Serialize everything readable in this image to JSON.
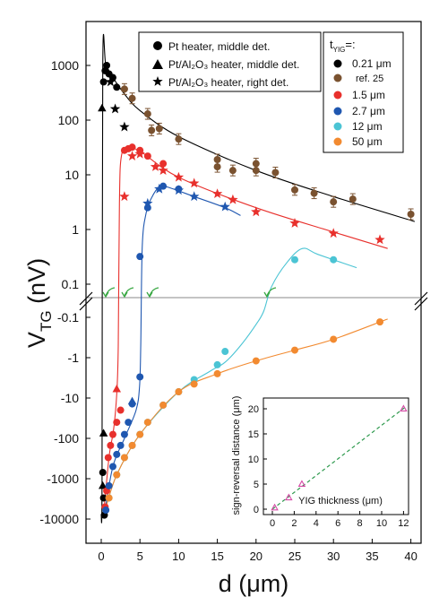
{
  "chart_data": [
    {
      "type": "scatter",
      "xlabel": "d (μm)",
      "ylabel": "V",
      "ylabel_sub": "TG",
      "ylabel_unit": " (nV)",
      "xlim": [
        -1.5,
        40.5
      ],
      "x_ticks": [
        "0",
        "5",
        "10",
        "15",
        "20",
        "25",
        "30",
        "35",
        "40"
      ],
      "y_scale": "symmetric-log, broken axis between +0.05 nV and -0.05 nV",
      "y_ticks_positive": [
        "1000",
        "100",
        "10",
        "1",
        "0.1"
      ],
      "y_ticks_negative": [
        "-0.1",
        "-1",
        "-10",
        "-100",
        "-1000",
        "-10000"
      ],
      "legend_markers": [
        {
          "marker": "circle",
          "label": "Pt heater, middle det."
        },
        {
          "marker": "triangle",
          "label": "Pt/Al₂O₃ heater, middle det."
        },
        {
          "marker": "star",
          "label": "Pt/Al₂O₃ heater, right det."
        }
      ],
      "legend_thickness_title": "t",
      "legend_thickness_title_sub": "YIG",
      "legend_thickness_title_suffix": "=:",
      "series": [
        {
          "name": "0.21 μm",
          "color": "#000000",
          "points": [
            {
              "x": 0.3,
              "y": 500,
              "m": "circle"
            },
            {
              "x": 0.5,
              "y": 800,
              "m": "circle"
            },
            {
              "x": 0.7,
              "y": 1000,
              "m": "circle"
            },
            {
              "x": 1.0,
              "y": 700,
              "m": "circle"
            },
            {
              "x": 1.5,
              "y": 600,
              "m": "circle"
            },
            {
              "x": 2.0,
              "y": 400,
              "m": "circle"
            },
            {
              "x": 0.2,
              "y": -700,
              "m": "circle"
            },
            {
              "x": 0.3,
              "y": -3000,
              "m": "circle"
            },
            {
              "x": 0.4,
              "y": -8000,
              "m": "circle"
            },
            {
              "x": 0.1,
              "y": 165,
              "m": "triangle"
            },
            {
              "x": 0.3,
              "y": -75,
              "m": "triangle"
            },
            {
              "x": 0.2,
              "y": -1500,
              "m": "triangle"
            },
            {
              "x": 1.2,
              "y": 500,
              "m": "star"
            },
            {
              "x": 1.8,
              "y": 160,
              "m": "star"
            },
            {
              "x": 3.0,
              "y": 75,
              "m": "star"
            }
          ],
          "curve": [
            [
              0.0,
              -8000
            ],
            [
              0.1,
              -1000
            ],
            [
              0.2,
              1000
            ],
            [
              0.6,
              1000
            ],
            [
              1.5,
              600
            ],
            [
              3.0,
              300
            ],
            [
              5.0,
              150
            ],
            [
              10.0,
              50
            ],
            [
              20.0,
              12
            ],
            [
              30.0,
              4
            ],
            [
              40.5,
              1.4
            ]
          ]
        },
        {
          "name": "ref. 25",
          "color": "#7a5230",
          "points": [
            {
              "x": 3.0,
              "y": 370
            },
            {
              "x": 4.0,
              "y": 250
            },
            {
              "x": 6.0,
              "y": 130
            },
            {
              "x": 6.5,
              "y": 65
            },
            {
              "x": 7.5,
              "y": 70
            },
            {
              "x": 10.0,
              "y": 45
            },
            {
              "x": 15.0,
              "y": 19
            },
            {
              "x": 15.0,
              "y": 14
            },
            {
              "x": 17.0,
              "y": 12
            },
            {
              "x": 20.0,
              "y": 16
            },
            {
              "x": 20.0,
              "y": 12
            },
            {
              "x": 22.5,
              "y": 11
            },
            {
              "x": 25.0,
              "y": 5.3
            },
            {
              "x": 27.5,
              "y": 4.6
            },
            {
              "x": 30.0,
              "y": 3.2
            },
            {
              "x": 32.5,
              "y": 3.6
            },
            {
              "x": 40.0,
              "y": 1.9
            }
          ]
        },
        {
          "name": "1.5 μm",
          "color": "#e8302c",
          "points": [
            {
              "x": 0.5,
              "y": -5000,
              "m": "circle"
            },
            {
              "x": 0.7,
              "y": -2000,
              "m": "circle"
            },
            {
              "x": 0.9,
              "y": -300,
              "m": "circle"
            },
            {
              "x": 1.2,
              "y": -150,
              "m": "circle"
            },
            {
              "x": 1.5,
              "y": -80,
              "m": "circle"
            },
            {
              "x": 2.0,
              "y": -40,
              "m": "circle"
            },
            {
              "x": 2.5,
              "y": -20,
              "m": "circle"
            },
            {
              "x": 3.0,
              "y": 28,
              "m": "circle"
            },
            {
              "x": 3.5,
              "y": 30,
              "m": "circle"
            },
            {
              "x": 4.0,
              "y": 32,
              "m": "circle"
            },
            {
              "x": 5.0,
              "y": 28,
              "m": "circle"
            },
            {
              "x": 6.0,
              "y": 22,
              "m": "circle"
            },
            {
              "x": 8.0,
              "y": 16,
              "m": "circle"
            },
            {
              "x": 2.0,
              "y": -6,
              "m": "triangle"
            },
            {
              "x": 3.0,
              "y": 4,
              "m": "star"
            },
            {
              "x": 4.0,
              "y": 22,
              "m": "star"
            },
            {
              "x": 5.0,
              "y": 24,
              "m": "star"
            },
            {
              "x": 7.0,
              "y": 14,
              "m": "star"
            },
            {
              "x": 8.0,
              "y": 12,
              "m": "star"
            },
            {
              "x": 10.0,
              "y": 9,
              "m": "star"
            },
            {
              "x": 12.0,
              "y": 7,
              "m": "star"
            },
            {
              "x": 15.0,
              "y": 4.5,
              "m": "star"
            },
            {
              "x": 17.0,
              "y": 3.5,
              "m": "star"
            },
            {
              "x": 20.0,
              "y": 2.1,
              "m": "star"
            },
            {
              "x": 25.0,
              "y": 1.3,
              "m": "star"
            },
            {
              "x": 30.0,
              "y": 0.85,
              "m": "star"
            },
            {
              "x": 36.0,
              "y": 0.65,
              "m": "star"
            }
          ],
          "curve": [
            [
              0.3,
              -8000
            ],
            [
              1.0,
              -300
            ],
            [
              1.6,
              -60
            ],
            [
              2.0,
              -8
            ],
            [
              2.2,
              -0.5
            ],
            [
              2.35,
              3
            ],
            [
              2.6,
              22
            ],
            [
              3.5,
              30
            ],
            [
              5.0,
              27
            ],
            [
              10.0,
              9
            ],
            [
              20.0,
              2.5
            ],
            [
              30.0,
              0.9
            ],
            [
              37.0,
              0.45
            ]
          ]
        },
        {
          "name": "2.7 μm",
          "color": "#1f57b0",
          "points": [
            {
              "x": 0.6,
              "y": -6000,
              "m": "circle"
            },
            {
              "x": 1.0,
              "y": -1500,
              "m": "circle"
            },
            {
              "x": 1.5,
              "y": -500,
              "m": "circle"
            },
            {
              "x": 2.0,
              "y": -250,
              "m": "circle"
            },
            {
              "x": 2.5,
              "y": -150,
              "m": "circle"
            },
            {
              "x": 3.0,
              "y": -80,
              "m": "circle"
            },
            {
              "x": 3.5,
              "y": -40,
              "m": "circle"
            },
            {
              "x": 4.0,
              "y": -14,
              "m": "circle"
            },
            {
              "x": 5.0,
              "y": -3,
              "m": "circle"
            },
            {
              "x": 5.0,
              "y": 0.32,
              "m": "circle"
            },
            {
              "x": 6.0,
              "y": 2.5,
              "m": "circle"
            },
            {
              "x": 8.0,
              "y": 6.2,
              "m": "circle"
            },
            {
              "x": 10.0,
              "y": 5.5,
              "m": "circle"
            },
            {
              "x": 4.0,
              "y": -12,
              "m": "triangle"
            },
            {
              "x": 6.0,
              "y": 3.0,
              "m": "star"
            },
            {
              "x": 7.5,
              "y": 5.5,
              "m": "star"
            },
            {
              "x": 10.0,
              "y": 5.2,
              "m": "star"
            },
            {
              "x": 12.0,
              "y": 4.0,
              "m": "star"
            },
            {
              "x": 16.0,
              "y": 2.6,
              "m": "star"
            }
          ],
          "curve": [
            [
              0.4,
              -8000
            ],
            [
              1.5,
              -500
            ],
            [
              3.0,
              -100
            ],
            [
              4.5,
              -20
            ],
            [
              4.95,
              -5
            ],
            [
              5.1,
              -0.5
            ],
            [
              5.3,
              0.5
            ],
            [
              5.8,
              2.0
            ],
            [
              6.5,
              3.8
            ],
            [
              7.5,
              6.0
            ],
            [
              8.5,
              6.0
            ],
            [
              12.0,
              4.0
            ],
            [
              16.0,
              2.5
            ],
            [
              18.0,
              1.8
            ]
          ]
        },
        {
          "name": "12 μm",
          "color": "#4bc4d4",
          "points": [
            {
              "x": 1.0,
              "y": -3000
            },
            {
              "x": 2.0,
              "y": -800
            },
            {
              "x": 3.0,
              "y": -300
            },
            {
              "x": 4.0,
              "y": -150
            },
            {
              "x": 5.0,
              "y": -80
            },
            {
              "x": 6.0,
              "y": -40
            },
            {
              "x": 8.0,
              "y": -15
            },
            {
              "x": 10.0,
              "y": -7
            },
            {
              "x": 12.0,
              "y": -3.5
            },
            {
              "x": 15.0,
              "y": -1.5
            },
            {
              "x": 16.0,
              "y": -0.7
            },
            {
              "x": 25.0,
              "y": 0.28
            },
            {
              "x": 30.0,
              "y": 0.28
            }
          ],
          "curve": [
            [
              0.5,
              -6000
            ],
            [
              2.0,
              -800
            ],
            [
              5.0,
              -80
            ],
            [
              10.0,
              -7
            ],
            [
              14.0,
              -2.2
            ],
            [
              16.0,
              -1.3
            ],
            [
              18.0,
              -0.5
            ],
            [
              20.0,
              -0.15
            ],
            [
              21.0,
              -0.07
            ],
            [
              22.0,
              0.09
            ],
            [
              24.0,
              0.25
            ],
            [
              26.0,
              0.45
            ],
            [
              28.0,
              0.35
            ],
            [
              33.0,
              0.2
            ]
          ]
        },
        {
          "name": "50 μm",
          "color": "#f28a30",
          "points": [
            {
              "x": 1.0,
              "y": -3000
            },
            {
              "x": 2.0,
              "y": -800
            },
            {
              "x": 3.0,
              "y": -300
            },
            {
              "x": 4.0,
              "y": -150
            },
            {
              "x": 5.0,
              "y": -80
            },
            {
              "x": 6.0,
              "y": -40
            },
            {
              "x": 8.0,
              "y": -15
            },
            {
              "x": 10.0,
              "y": -7
            },
            {
              "x": 12.0,
              "y": -4.5
            },
            {
              "x": 15.0,
              "y": -2.5
            },
            {
              "x": 20.0,
              "y": -1.2
            },
            {
              "x": 25.0,
              "y": -0.65
            },
            {
              "x": 30.0,
              "y": -0.35
            },
            {
              "x": 36.0,
              "y": -0.13
            }
          ],
          "curve": [
            [
              0.5,
              -6000
            ],
            [
              2.0,
              -800
            ],
            [
              5.0,
              -80
            ],
            [
              10.0,
              -7
            ],
            [
              15.0,
              -2.5
            ],
            [
              20.0,
              -1.2
            ],
            [
              25.0,
              -0.65
            ],
            [
              30.0,
              -0.35
            ],
            [
              37.0,
              -0.11
            ]
          ]
        }
      ]
    },
    {
      "type": "scatter",
      "xlabel": "YIG thickness (μm)",
      "ylabel": "sign-reversal distance (μm)",
      "xlim": [
        0,
        13
      ],
      "ylim": [
        -0.5,
        21
      ],
      "x_ticks": [
        0,
        2,
        4,
        6,
        8,
        10,
        12
      ],
      "y_ticks": [
        0,
        5,
        10,
        15,
        20
      ],
      "points": [
        [
          0.21,
          0.3
        ],
        [
          1.5,
          2.3
        ],
        [
          2.7,
          5.0
        ],
        [
          12.0,
          20.0
        ]
      ],
      "fit_line": [
        [
          0,
          0
        ],
        [
          12.2,
          20.4
        ]
      ],
      "marker_color": "#d64aa6",
      "line_color": "#2e9a4e"
    }
  ]
}
